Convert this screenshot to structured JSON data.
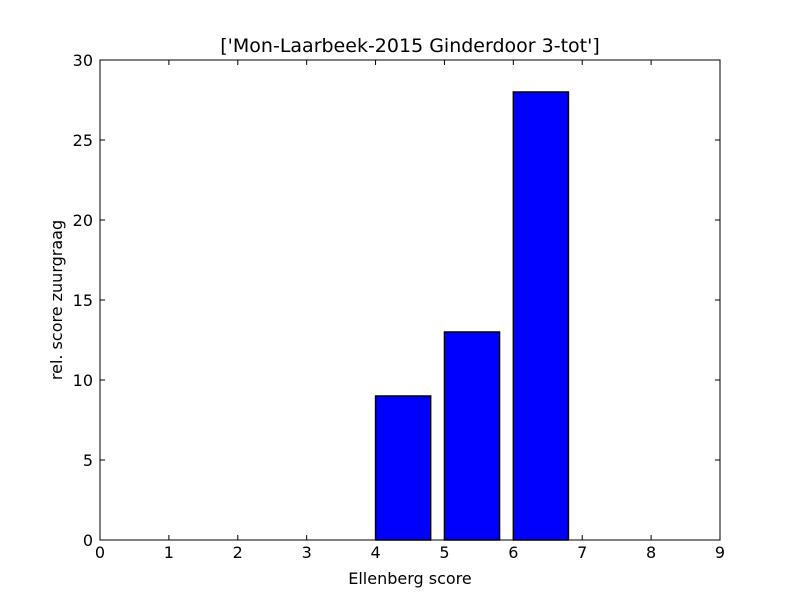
{
  "chart_data": {
    "type": "bar",
    "title": "['Mon-Laarbeek-2015 Ginderdoor 3-tot']",
    "xlabel": "Ellenberg score",
    "ylabel": "rel. score zuurgraag",
    "xlim": [
      0,
      9
    ],
    "ylim": [
      0,
      30
    ],
    "xticks": [
      0,
      1,
      2,
      3,
      4,
      5,
      6,
      7,
      8,
      9
    ],
    "yticks": [
      0,
      5,
      10,
      15,
      20,
      25,
      30
    ],
    "bar_width": 0.8,
    "bars": [
      {
        "x": 0,
        "value": 0
      },
      {
        "x": 1,
        "value": 0
      },
      {
        "x": 2,
        "value": 0
      },
      {
        "x": 3,
        "value": 0
      },
      {
        "x": 4,
        "value": 9
      },
      {
        "x": 5,
        "value": 13
      },
      {
        "x": 6,
        "value": 28
      },
      {
        "x": 7,
        "value": 0
      },
      {
        "x": 8,
        "value": 0
      }
    ],
    "grid": false,
    "legend": "none",
    "bar_color": "#0000ff",
    "edge_color": "#000000"
  }
}
